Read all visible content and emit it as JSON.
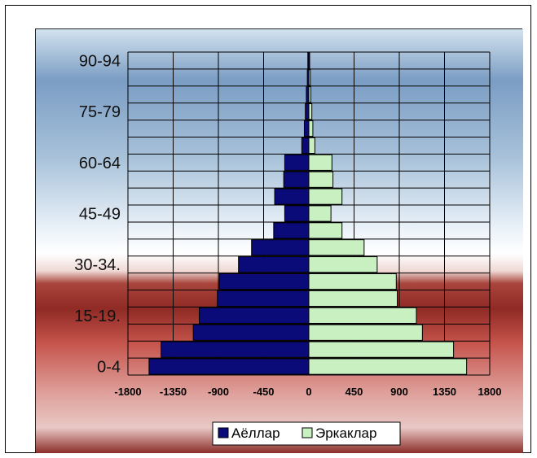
{
  "chart_data": {
    "type": "bar",
    "orientation": "horizontal",
    "layout": "population-pyramid",
    "categories": [
      "0-4",
      "",
      "",
      "15-19.",
      "",
      "",
      "30-34.",
      "",
      "",
      "45-49",
      "",
      "",
      "60-64",
      "",
      "",
      "75-79",
      "",
      "",
      "90-94"
    ],
    "series": [
      {
        "name": "Аёллар",
        "values": [
          -1590,
          -1470,
          -1150,
          -1090,
          -910,
          -890,
          -700,
          -570,
          -350,
          -240,
          -340,
          -250,
          -240,
          -70,
          -45,
          -35,
          -25,
          -15,
          -10
        ],
        "color": "#0a0a78"
      },
      {
        "name": "Эркаклар",
        "values": [
          1570,
          1440,
          1130,
          1070,
          880,
          870,
          680,
          550,
          330,
          220,
          330,
          240,
          230,
          60,
          40,
          30,
          20,
          15,
          8
        ],
        "color": "#c8f0c0"
      }
    ],
    "xaxis": {
      "ticks": [
        "-1800",
        "-1350",
        "-900",
        "-450",
        "0",
        "450",
        "900",
        "1350",
        "1800"
      ],
      "range": [
        -1800,
        1800
      ]
    },
    "grid": true,
    "legend_position": "bottom-center"
  }
}
